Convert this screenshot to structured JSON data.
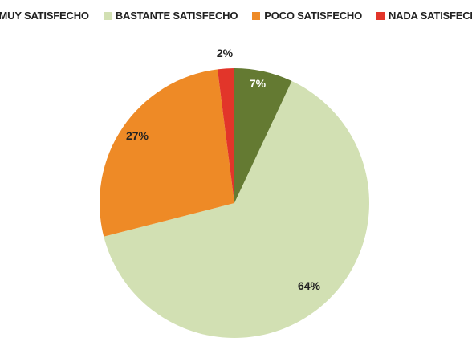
{
  "chart_data": {
    "type": "pie",
    "categories": [
      "MUY SATISFECHO",
      "BASTANTE SATISFECHO",
      "POCO SATISFECHO",
      "NADA SATISFECHO"
    ],
    "values": [
      7,
      64,
      27,
      2
    ],
    "data_labels": [
      "7%",
      "64%",
      "27%",
      "2%"
    ],
    "colors": [
      "#647a32",
      "#d2e0b3",
      "#ee8a26",
      "#e2352a"
    ],
    "label_colors": [
      "#ffffff",
      "#222222",
      "#222222",
      "#222222"
    ],
    "legend_placement": "top",
    "start_angle": "12 o'clock",
    "direction": "clockwise"
  }
}
